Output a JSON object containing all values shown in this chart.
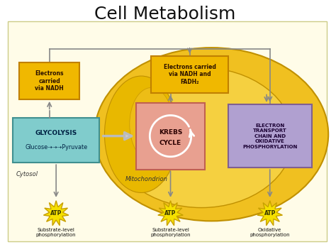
{
  "title": "Cell Metabolism",
  "title_fontsize": 18,
  "fig_bg": "#ffffff",
  "panel_bg": "#fffce8",
  "panel_edge": "#cccc88",
  "mito_outer_color": "#f0c020",
  "mito_outer_edge": "#c09000",
  "mito_inner_color": "#f5d040",
  "mito_inner_edge": "#c09000",
  "mito_fold_color": "#e8b800",
  "krebs_box_color": "#e8a090",
  "krebs_box_edge": "#c06050",
  "glycolysis_box_color": "#80cccc",
  "glycolysis_box_edge": "#409090",
  "etc_box_color": "#b0a0d0",
  "etc_box_edge": "#806090",
  "nadh_box_color": "#f0b800",
  "nadh_box_edge": "#c08000",
  "atp_color": "#f5e000",
  "atp_edge_color": "#c8a000",
  "line_color": "#888888",
  "arrow_color": "#aaaaaa",
  "cytosol_label": "Cytosol",
  "mito_label": "Mitochondrion",
  "glycolysis_line1": "GLYCOLYSIS",
  "glycolysis_line2": "Glucose⇢⇢⇢Pyruvate",
  "krebs_line1": "KREBS",
  "krebs_line2": "CYCLE",
  "etc_text": "ELECTRON\nTRANSPORT\nCHAIN AND\nOXIDATIVE\nPHOSPHORYLATION",
  "nadh1_text": "Electrons\ncarried\nvia NADH",
  "nadh2_text": "Electrons carried\nvia NADH and\nFADH₂",
  "atp1_label": "Substrate-level\nphosphorylation",
  "atp2_label": "Substrate-level\nphosphorylation",
  "atp3_label": "Oxidative\nphosphorylation",
  "atp_text": "ATP"
}
